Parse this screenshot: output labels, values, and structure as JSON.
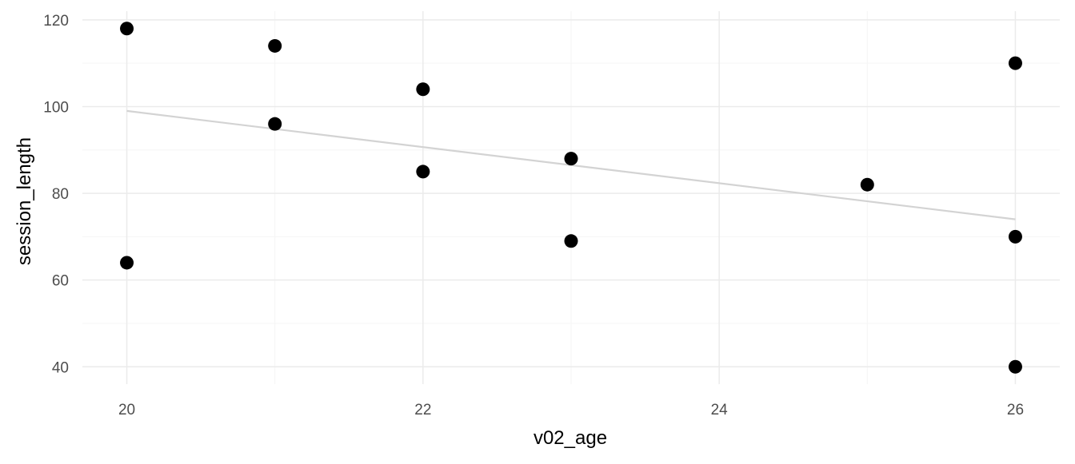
{
  "chart_data": {
    "type": "scatter",
    "title": "",
    "xlabel": "v02_age",
    "ylabel": "session_length",
    "xlim": [
      19.7,
      26.3
    ],
    "ylim": [
      36,
      122
    ],
    "x_ticks": [
      20,
      22,
      24,
      26
    ],
    "y_ticks": [
      40,
      60,
      80,
      100,
      120
    ],
    "x_minor_ticks": [
      21,
      23,
      25
    ],
    "y_minor_ticks": [
      50,
      70,
      90,
      110
    ],
    "x_tick_labels": [
      "20",
      "22",
      "24",
      "26"
    ],
    "y_tick_labels": [
      "40",
      "60",
      "80",
      "100",
      "120"
    ],
    "grid": true,
    "points": [
      {
        "x": 20,
        "y": 118
      },
      {
        "x": 20,
        "y": 64
      },
      {
        "x": 21,
        "y": 114
      },
      {
        "x": 21,
        "y": 96
      },
      {
        "x": 22,
        "y": 104
      },
      {
        "x": 22,
        "y": 85
      },
      {
        "x": 23,
        "y": 88
      },
      {
        "x": 23,
        "y": 69
      },
      {
        "x": 25,
        "y": 82
      },
      {
        "x": 26,
        "y": 110
      },
      {
        "x": 26,
        "y": 70
      },
      {
        "x": 26,
        "y": 40
      }
    ],
    "trend_line": {
      "x": [
        20,
        26
      ],
      "y": [
        99,
        74
      ]
    },
    "colors": {
      "point": "#000000",
      "trend_line": "#d3d3d3",
      "grid_major": "#ebebeb",
      "grid_minor": "#f5f5f5",
      "tick_label": "#4d4d4d",
      "axis_title": "#000000"
    }
  }
}
